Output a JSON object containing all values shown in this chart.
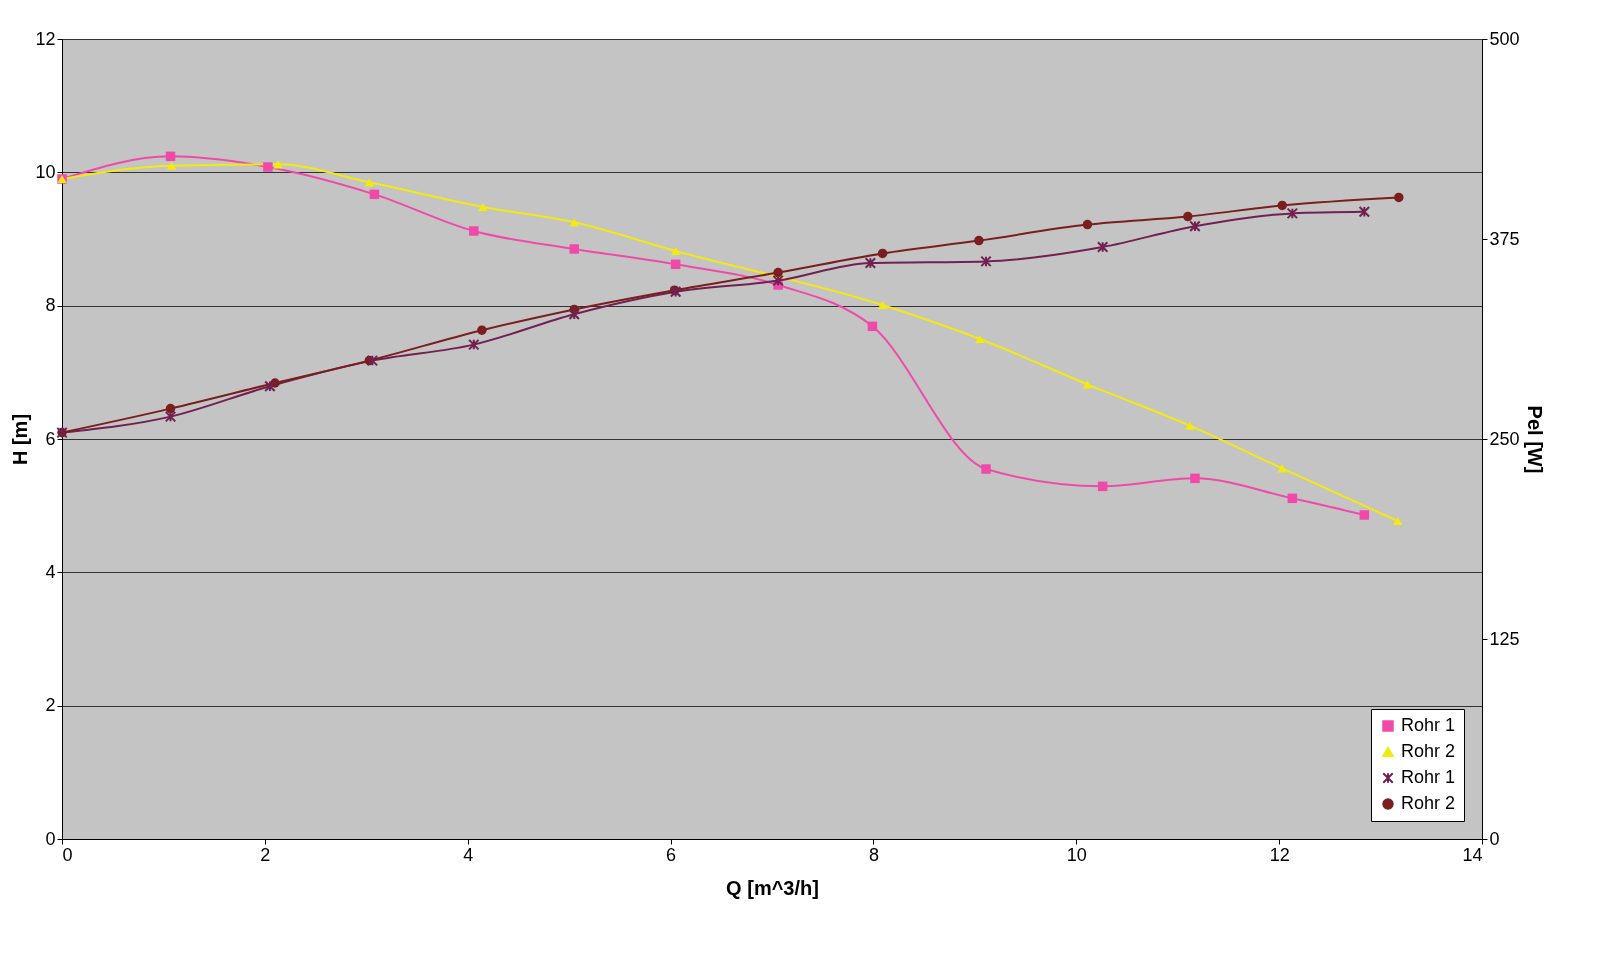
{
  "chart_data": {
    "type": "line",
    "xlabel": "Q [m^3/h]",
    "ylabel": "H [m]",
    "y2label": "Pel [W]",
    "xlim": [
      0,
      14
    ],
    "xticks": [
      0,
      2,
      4,
      6,
      8,
      10,
      12,
      14
    ],
    "ylim": [
      0,
      12
    ],
    "yticks": [
      0,
      2,
      4,
      6,
      8,
      10,
      12
    ],
    "y2lim": [
      0,
      500
    ],
    "y2ticks": [
      0,
      125,
      250,
      375,
      500
    ],
    "grid": "y",
    "legend": "bottom right",
    "line_style": "solid",
    "series": [
      {
        "name": "Rohr 1",
        "color": "#f04aa8",
        "marker": "square",
        "x": [
          0,
          1.07,
          2.03,
          3.08,
          4.06,
          5.05,
          6.05,
          7.06,
          7.99,
          9.11,
          10.26,
          11.17,
          12.13,
          12.84
        ],
        "values": [
          9.9,
          10.24,
          10.08,
          9.67,
          9.12,
          8.85,
          8.62,
          8.31,
          7.69,
          5.55,
          5.29,
          5.41,
          5.11,
          4.86
        ]
      },
      {
        "name": "Rohr 2",
        "color": "#f2ea10",
        "marker": "triangle",
        "x": [
          0,
          1.08,
          2.13,
          3.03,
          4.15,
          5.05,
          6.05,
          8.09,
          9.05,
          10.11,
          11.12,
          12.03,
          13.17
        ],
        "values": [
          9.9,
          10.1,
          10.12,
          9.85,
          9.48,
          9.25,
          8.82,
          8.01,
          7.5,
          6.82,
          6.2,
          5.56,
          4.77
        ]
      },
      {
        "name": "Rohr 1",
        "color": "#722050",
        "marker": "cross",
        "axis": "y2",
        "x": [
          0,
          1.07,
          2.05,
          3.06,
          4.06,
          5.05,
          6.05,
          7.06,
          7.97,
          9.11,
          10.26,
          11.17,
          12.13,
          12.84
        ],
        "values": [
          254,
          264,
          283,
          299,
          309,
          328,
          342,
          349,
          360,
          361,
          370,
          383,
          391,
          392
        ]
      },
      {
        "name": "Rohr 2",
        "color": "#7a1e1e",
        "marker": "circle",
        "axis": "y2",
        "x": [
          0,
          1.07,
          2.1,
          3.03,
          4.14,
          5.05,
          6.04,
          7.06,
          8.09,
          9.04,
          10.11,
          11.1,
          12.03,
          13.18
        ],
        "values": [
          254,
          269,
          285,
          299,
          318,
          331,
          343,
          354,
          366,
          374,
          384,
          389,
          396,
          401
        ]
      }
    ]
  }
}
